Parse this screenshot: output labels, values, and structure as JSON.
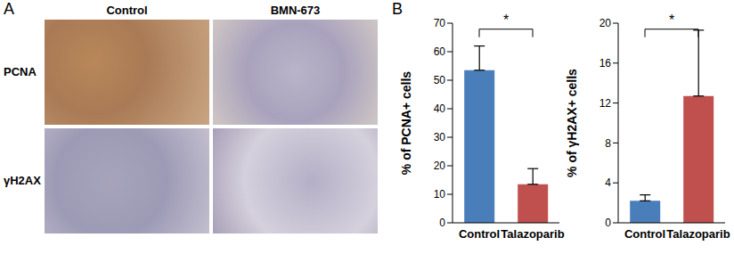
{
  "panel_a": {
    "label": "A",
    "columns": [
      "Control",
      "BMN-673"
    ],
    "rows": [
      "PCNA",
      "γH2AX"
    ]
  },
  "panel_b_label": "B",
  "chart_data": [
    {
      "type": "bar",
      "y_label": "% of PCNA+ cells",
      "categories": [
        "Control",
        "Talazoparib"
      ],
      "values": [
        53.5,
        13.5
      ],
      "errors": [
        8.5,
        5.5
      ],
      "colors": [
        "#4a7ebb",
        "#c0504d"
      ],
      "ylim": [
        0,
        70
      ],
      "yticks": [
        0,
        10,
        20,
        30,
        40,
        50,
        60,
        70
      ],
      "significance": "*"
    },
    {
      "type": "bar",
      "y_label": "% of γH2AX+ cells",
      "categories": [
        "Control",
        "Talazoparib"
      ],
      "values": [
        2.2,
        12.7
      ],
      "errors": [
        0.6,
        6.6
      ],
      "colors": [
        "#4a7ebb",
        "#c0504d"
      ],
      "ylim": [
        0,
        20
      ],
      "yticks": [
        0,
        4,
        8,
        12,
        16,
        20
      ],
      "significance": "*"
    }
  ]
}
